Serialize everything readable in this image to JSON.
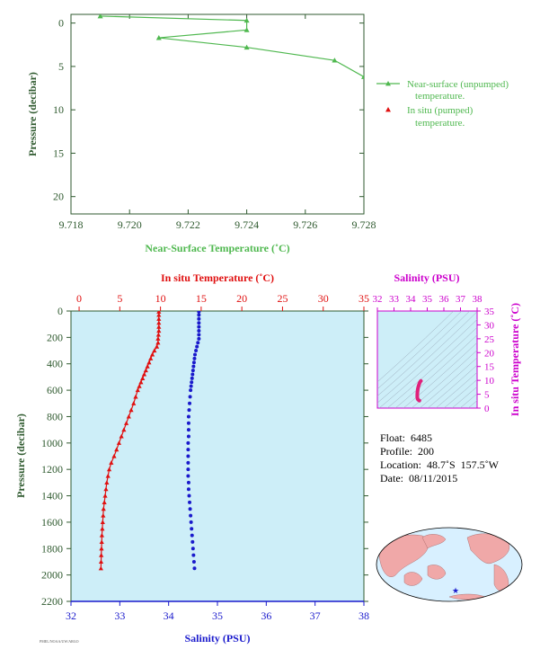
{
  "colors": {
    "green": "#4fb84f",
    "axis_green": "#2f5a2f",
    "red": "#e01010",
    "blue": "#1a1acc",
    "magenta": "#cc00cc",
    "panel_bg": "#cdeef8",
    "land": "#f0a8a8",
    "ocean": "#d8f0ff",
    "star": "#1a1acc",
    "footer_text": "#555555"
  },
  "chart_data": [
    {
      "type": "line",
      "xlabel": "Near-Surface Temperature (˚C)",
      "ylabel": "Pressure (decibar)",
      "xlim": [
        9.718,
        9.728
      ],
      "ylim": [
        22,
        -1
      ],
      "x_ticks": [
        9.718,
        9.72,
        9.722,
        9.724,
        9.726,
        9.728
      ],
      "x_tick_labels": [
        "9.718",
        "9.720",
        "9.722",
        "9.724",
        "9.726",
        "9.728"
      ],
      "y_ticks": [
        0,
        5,
        10,
        15,
        20
      ],
      "y_tick_labels": [
        "0",
        "5",
        "10",
        "15",
        "20"
      ],
      "series": [
        {
          "name": "Near-surface (unpumped) temperature.",
          "name_lines": [
            "Near-surface (unpumped)",
            "temperature."
          ],
          "x": [
            9.719,
            9.724,
            9.724,
            9.721,
            9.724,
            9.727,
            9.728
          ],
          "y": [
            -0.8,
            -0.3,
            0.8,
            1.7,
            2.8,
            4.3,
            6.2
          ]
        },
        {
          "name": "In situ (pumped) temperature.",
          "name_lines": [
            "In situ (pumped)",
            "temperature."
          ],
          "x": [],
          "y": []
        }
      ],
      "legend_position": "right"
    },
    {
      "type": "line",
      "top_xlabel": "In situ Temperature (˚C)",
      "bottom_xlabel": "Salinity (PSU)",
      "ylabel": "Pressure (decibar)",
      "temp_lim": [
        -1,
        35
      ],
      "sal_lim": [
        32,
        38
      ],
      "ylim": [
        2200,
        0
      ],
      "top_ticks": [
        0,
        5,
        10,
        15,
        20,
        25,
        30,
        35
      ],
      "top_tick_labels": [
        "0",
        "5",
        "10",
        "15",
        "20",
        "25",
        "30",
        "35"
      ],
      "bottom_ticks": [
        32,
        33,
        34,
        35,
        36,
        37,
        38
      ],
      "bottom_tick_labels": [
        "32",
        "33",
        "34",
        "35",
        "36",
        "37",
        "38"
      ],
      "y_ticks": [
        0,
        200,
        400,
        600,
        800,
        1000,
        1200,
        1400,
        1600,
        1800,
        2000,
        2200
      ],
      "y_tick_labels": [
        "0",
        "200",
        "400",
        "600",
        "800",
        "1000",
        "1200",
        "1400",
        "1600",
        "1800",
        "2000",
        "2200"
      ],
      "series": [
        {
          "name": "In situ temperature",
          "pressure": [
            5,
            30,
            60,
            90,
            120,
            150,
            180,
            210,
            240,
            270,
            300,
            330,
            360,
            390,
            420,
            450,
            480,
            510,
            540,
            570,
            600,
            650,
            700,
            750,
            800,
            850,
            900,
            950,
            1000,
            1050,
            1100,
            1150,
            1200,
            1250,
            1300,
            1350,
            1400,
            1450,
            1500,
            1550,
            1600,
            1650,
            1700,
            1750,
            1800,
            1850,
            1900,
            1950
          ],
          "temperature": [
            9.8,
            9.8,
            9.8,
            9.8,
            9.8,
            9.8,
            9.75,
            9.7,
            9.7,
            9.55,
            9.25,
            9.0,
            8.8,
            8.6,
            8.4,
            8.2,
            8.0,
            7.8,
            7.6,
            7.4,
            7.2,
            6.95,
            6.7,
            6.4,
            6.1,
            5.8,
            5.5,
            5.2,
            4.9,
            4.6,
            4.3,
            3.95,
            3.7,
            3.55,
            3.4,
            3.3,
            3.2,
            3.1,
            3.0,
            2.95,
            2.9,
            2.85,
            2.8,
            2.78,
            2.75,
            2.72,
            2.7,
            2.68
          ]
        },
        {
          "name": "Salinity",
          "pressure": [
            5,
            30,
            60,
            90,
            120,
            150,
            180,
            210,
            240,
            270,
            300,
            330,
            360,
            390,
            420,
            450,
            480,
            510,
            540,
            570,
            600,
            650,
            700,
            750,
            800,
            850,
            900,
            950,
            1000,
            1050,
            1100,
            1150,
            1200,
            1250,
            1300,
            1350,
            1400,
            1450,
            1500,
            1550,
            1600,
            1650,
            1700,
            1750,
            1800,
            1850,
            1900,
            1950
          ],
          "salinity": [
            34.62,
            34.62,
            34.62,
            34.62,
            34.62,
            34.62,
            34.62,
            34.62,
            34.6,
            34.58,
            34.56,
            34.54,
            34.53,
            34.52,
            34.51,
            34.5,
            34.49,
            34.48,
            34.47,
            34.46,
            34.45,
            34.44,
            34.43,
            34.42,
            34.41,
            34.41,
            34.41,
            34.41,
            34.4,
            34.4,
            34.4,
            34.4,
            34.4,
            34.4,
            34.41,
            34.41,
            34.42,
            34.43,
            34.44,
            34.45,
            34.46,
            34.47,
            34.48,
            34.49,
            34.5,
            34.51,
            34.52,
            34.53
          ]
        }
      ]
    },
    {
      "type": "scatter",
      "xlabel": "Salinity (PSU)",
      "ylabel": "In situ Temperature (˚C)",
      "xlim": [
        32,
        38
      ],
      "ylim": [
        0,
        35
      ],
      "x_ticks": [
        32,
        33,
        34,
        35,
        36,
        37,
        38
      ],
      "x_tick_labels": [
        "32",
        "33",
        "34",
        "35",
        "36",
        "37",
        "38"
      ],
      "y_ticks": [
        0,
        5,
        10,
        15,
        20,
        25,
        30,
        35
      ],
      "y_tick_labels": [
        "0",
        "5",
        "10",
        "15",
        "20",
        "25",
        "30",
        "35"
      ],
      "curve_salinity": [
        34.62,
        34.6,
        34.55,
        34.5,
        34.46,
        34.43,
        34.41,
        34.4,
        34.4,
        34.42,
        34.46,
        34.5,
        34.53
      ],
      "curve_temperature": [
        9.8,
        9.7,
        9.2,
        8.4,
        7.6,
        6.8,
        5.8,
        4.9,
        4.0,
        3.3,
        3.0,
        2.8,
        2.7
      ]
    }
  ],
  "info": {
    "float": "Float:  6485",
    "profile": "Profile:  200",
    "location": "Location:  48.7˚S  157.5˚W",
    "date": "Date:  08/11/2015"
  },
  "map": {
    "marker": "float-position",
    "lat": -48.7,
    "lon": -157.5
  },
  "footer": "PMEL/NOAA/UW/ARGO"
}
